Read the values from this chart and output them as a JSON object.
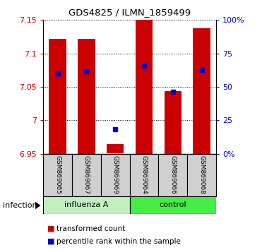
{
  "title": "GDS4825 / ILMN_1859499",
  "samples": [
    "GSM869065",
    "GSM869067",
    "GSM869069",
    "GSM869064",
    "GSM869066",
    "GSM869068"
  ],
  "group_labels": [
    "influenza A",
    "control"
  ],
  "group_label": "infection",
  "yticks_left": [
    6.95,
    7.0,
    7.05,
    7.1,
    7.15
  ],
  "ytick_labels_left": [
    "6.95",
    "7",
    "7.05",
    "7.1",
    "7.15"
  ],
  "ylim_left": [
    6.95,
    7.15
  ],
  "yticks_right": [
    0,
    25,
    50,
    75,
    100
  ],
  "ytick_labels_right": [
    "0%",
    "25",
    "50",
    "75",
    "100%"
  ],
  "ylim_right": [
    0,
    100
  ],
  "bar_bottoms": [
    6.95,
    6.95,
    6.951,
    6.95,
    6.95,
    6.95
  ],
  "bar_tops": [
    7.122,
    7.122,
    6.965,
    7.15,
    7.044,
    7.138
  ],
  "percentile_values": [
    7.07,
    7.073,
    6.987,
    7.082,
    7.043,
    7.075
  ],
  "bar_color": "#cc0000",
  "pct_color": "#0000cc",
  "group_bg_influenza": "#c0f0c0",
  "group_bg_control": "#44ee44",
  "sample_box_color": "#d0d0d0",
  "left_axis_color": "#cc0000",
  "right_axis_color": "#0000cc",
  "bar_width": 0.6
}
